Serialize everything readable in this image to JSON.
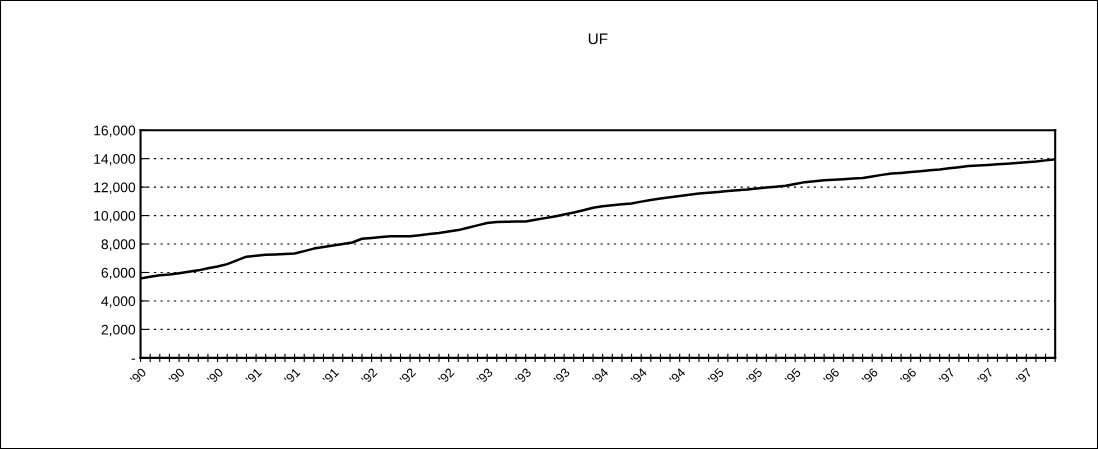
{
  "chart_data": {
    "type": "line",
    "title": "UF",
    "categories": [
      "'90",
      null,
      null,
      null,
      "'90",
      null,
      null,
      null,
      "'90",
      null,
      null,
      null,
      "'91",
      null,
      null,
      null,
      "'91",
      null,
      null,
      null,
      "'91",
      null,
      null,
      null,
      "'92",
      null,
      null,
      null,
      "'92",
      null,
      null,
      null,
      "'92",
      null,
      null,
      null,
      "'93",
      null,
      null,
      null,
      "'93",
      null,
      null,
      null,
      "'93",
      null,
      null,
      null,
      "'94",
      null,
      null,
      null,
      "'94",
      null,
      null,
      null,
      "'94",
      null,
      null,
      null,
      "'95",
      null,
      null,
      null,
      "'95",
      null,
      null,
      null,
      "'95",
      null,
      null,
      null,
      "'96",
      null,
      null,
      null,
      "'96",
      null,
      null,
      null,
      "'96",
      null,
      null,
      null,
      "'97",
      null,
      null,
      null,
      "'97",
      null,
      null,
      null,
      "'97",
      null,
      null,
      null
    ],
    "series": [
      {
        "color": "#000000",
        "values": [
          5580,
          5700,
          5800,
          5860,
          5950,
          6050,
          6150,
          6300,
          6420,
          6590,
          6850,
          7110,
          7180,
          7240,
          7270,
          7300,
          7330,
          7500,
          7680,
          7790,
          7900,
          8000,
          8110,
          8370,
          8430,
          8500,
          8550,
          8550,
          8550,
          8620,
          8700,
          8770,
          8880,
          8980,
          9150,
          9310,
          9480,
          9550,
          9570,
          9580,
          9590,
          9700,
          9820,
          9940,
          10080,
          10220,
          10380,
          10550,
          10660,
          10720,
          10790,
          10850,
          10980,
          11100,
          11200,
          11290,
          11380,
          11460,
          11550,
          11610,
          11660,
          11720,
          11780,
          11830,
          11900,
          11970,
          12030,
          12090,
          12220,
          12350,
          12420,
          12480,
          12520,
          12560,
          12600,
          12640,
          12750,
          12860,
          12950,
          13000,
          13060,
          13120,
          13180,
          13240,
          13320,
          13400,
          13480,
          13520,
          13560,
          13600,
          13650,
          13700,
          13750,
          13800,
          13880,
          13960
        ]
      }
    ],
    "ylim": [
      0,
      16000
    ],
    "yticks": [
      {
        "value": 0,
        "label": "-"
      },
      {
        "value": 2000,
        "label": "2,000"
      },
      {
        "value": 4000,
        "label": "4,000"
      },
      {
        "value": 6000,
        "label": "6,000"
      },
      {
        "value": 8000,
        "label": "8,000"
      },
      {
        "value": 10000,
        "label": "10,000"
      },
      {
        "value": 12000,
        "label": "12,000"
      },
      {
        "value": 14000,
        "label": "14,000"
      },
      {
        "value": 16000,
        "label": "16,000"
      }
    ],
    "grid": "y",
    "legend": false,
    "marker": "none",
    "line_style": "solid"
  }
}
